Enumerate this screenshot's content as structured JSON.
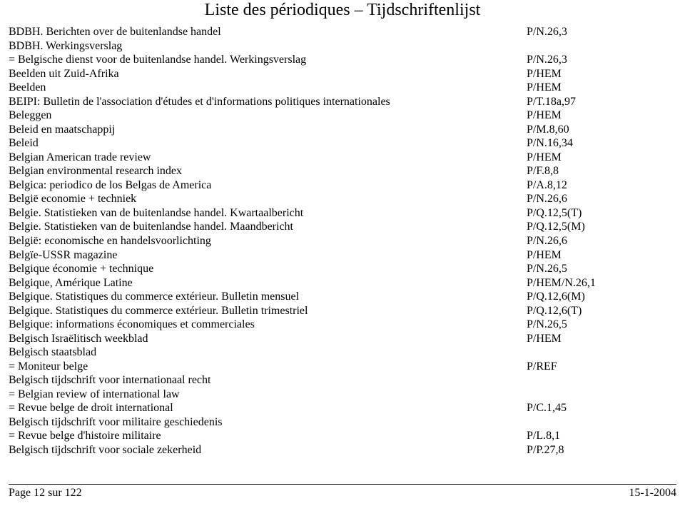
{
  "title": "Liste des périodiques – Tijdschriftenlijst",
  "rows": [
    {
      "name": "BDBH. Berichten over de buitenlandse handel",
      "code": "P/N.26,3"
    },
    {
      "name": "BDBH. Werkingsverslag",
      "code": ""
    },
    {
      "name": "= Belgische dienst voor de buitenlandse handel. Werkingsverslag",
      "code": "P/N.26,3"
    },
    {
      "name": "Beelden uit Zuid-Afrika",
      "code": "P/HEM"
    },
    {
      "name": "Beelden",
      "code": "P/HEM"
    },
    {
      "name": "BEIPI: Bulletin de l'association d'études et d'informations politiques internationales",
      "code": "P/T.18a,97"
    },
    {
      "name": "Beleggen",
      "code": "P/HEM"
    },
    {
      "name": "Beleid en maatschappij",
      "code": "P/M.8,60"
    },
    {
      "name": "Beleid",
      "code": "P/N.16,34"
    },
    {
      "name": "Belgian American trade review",
      "code": "P/HEM"
    },
    {
      "name": "Belgian environmental research index",
      "code": "P/F.8,8"
    },
    {
      "name": "Belgica: periodico de los Belgas de America",
      "code": "P/A.8,12"
    },
    {
      "name": "België economie + techniek",
      "code": "P/N.26,6"
    },
    {
      "name": "Belgie. Statistieken van de buitenlandse handel. Kwartaalbericht",
      "code": "P/Q.12,5(T)"
    },
    {
      "name": "Belgie. Statistieken van de buitenlandse handel. Maandbericht",
      "code": "P/Q.12,5(M)"
    },
    {
      "name": "België: economische en handelsvoorlichting",
      "code": "P/N.26,6"
    },
    {
      "name": "Belgïe-USSR magazine",
      "code": "P/HEM"
    },
    {
      "name": "Belgique économie + technique",
      "code": "P/N.26,5"
    },
    {
      "name": "Belgique, Amérique Latine",
      "code": "P/HEM/N.26,1"
    },
    {
      "name": "Belgique. Statistiques du commerce extérieur. Bulletin mensuel",
      "code": "P/Q.12,6(M)"
    },
    {
      "name": "Belgique. Statistiques du commerce extérieur. Bulletin trimestriel",
      "code": "P/Q.12,6(T)"
    },
    {
      "name": "Belgique: informations économiques et commerciales",
      "code": "P/N.26,5"
    },
    {
      "name": "Belgisch Israëlitisch weekblad",
      "code": "P/HEM"
    },
    {
      "name": "Belgisch staatsblad",
      "code": ""
    },
    {
      "name": "= Moniteur belge",
      "code": "P/REF"
    },
    {
      "name": "Belgisch tijdschrift voor internationaal recht",
      "code": ""
    },
    {
      "name": "= Belgian review of international law",
      "code": ""
    },
    {
      "name": "= Revue belge de droit international",
      "code": "P/C.1,45"
    },
    {
      "name": "Belgisch tijdschrift voor militaire geschiedenis",
      "code": ""
    },
    {
      "name": "= Revue belge d'histoire militaire",
      "code": "P/L.8,1"
    },
    {
      "name": "Belgisch tijdschrift voor sociale zekerheid",
      "code": "P/P.27,8"
    }
  ],
  "footer": {
    "left": "Page 12 sur 122",
    "right": "15-1-2004"
  }
}
